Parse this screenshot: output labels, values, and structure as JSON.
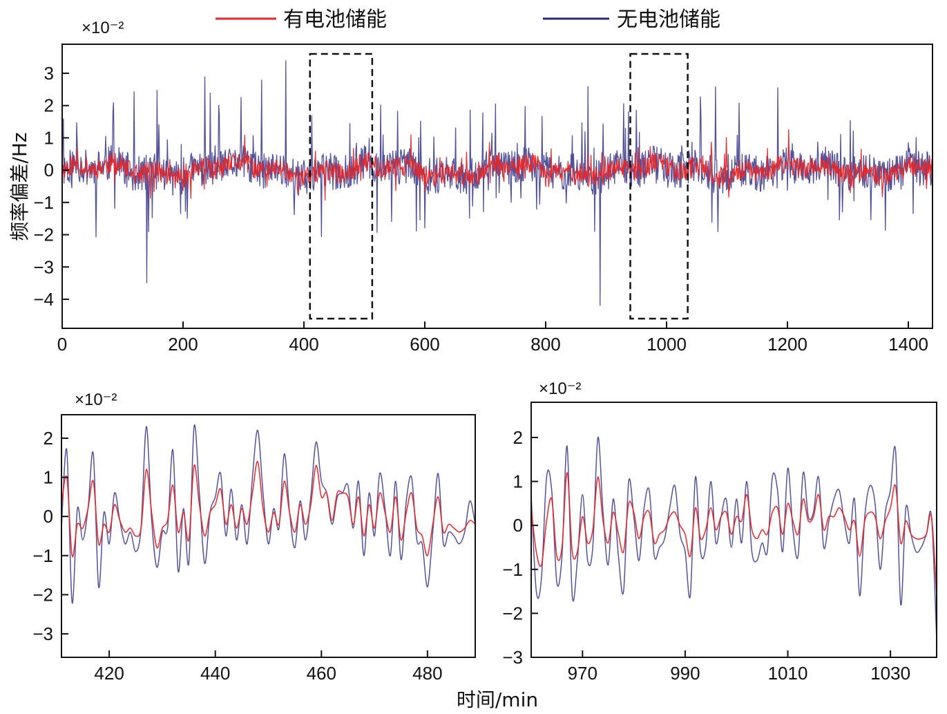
{
  "legend": {
    "with_battery": "有电池储能",
    "without_battery": "无电池储能"
  },
  "colors": {
    "with_battery": "#e5262a",
    "without_battery": "#27277f",
    "box": "#111111"
  },
  "chart_data": [
    {
      "id": "main",
      "type": "line",
      "title": "",
      "xlabel": "",
      "ylabel": "频率偏差/Hz",
      "y_scale_label": "×10⁻²",
      "xlim": [
        0,
        1440
      ],
      "ylim": [
        -4.9,
        3.9
      ],
      "x_ticks": [
        0,
        200,
        400,
        600,
        800,
        1000,
        1200,
        1400
      ],
      "y_ticks": [
        3,
        2,
        1,
        0,
        -1,
        -2,
        -3,
        -4
      ],
      "zoom_boxes": [
        {
          "x_from": 410,
          "x_to": 513,
          "y_from": -4.6,
          "y_to": 3.6
        },
        {
          "x_from": 940,
          "x_to": 1035,
          "y_from": -4.6,
          "y_to": 3.6
        }
      ],
      "series": [
        {
          "name": "有电池储能",
          "generator": {
            "seed": 11,
            "n": 1440,
            "amp": 0.55,
            "spike_prob": 0.06,
            "spike_amp": 0.9
          }
        },
        {
          "name": "无电池储能",
          "generator": {
            "seed": 11,
            "n": 1440,
            "amp": 0.95,
            "spike_prob": 0.09,
            "spike_amp": 2.2
          }
        }
      ],
      "notable_extremes": {
        "max": 3.4,
        "min": -4.2
      }
    },
    {
      "id": "zoom1",
      "type": "line",
      "title": "",
      "xlabel": "",
      "ylabel": "",
      "y_scale_label": "×10⁻²",
      "xlim": [
        411,
        489
      ],
      "ylim": [
        -3.6,
        2.6
      ],
      "x_ticks": [
        420,
        440,
        460,
        480
      ],
      "y_ticks": [
        2,
        1,
        0,
        -1,
        -2,
        -3
      ],
      "series": [
        {
          "name": "有电池储能",
          "x": [
            411,
            412,
            413,
            414,
            415,
            416,
            417,
            418,
            419,
            420,
            421,
            422,
            423,
            424,
            425,
            426,
            427,
            428,
            429,
            430,
            431,
            432,
            433,
            434,
            435,
            436,
            437,
            438,
            439,
            440,
            441,
            442,
            443,
            444,
            445,
            446,
            447,
            448,
            449,
            450,
            451,
            452,
            453,
            454,
            455,
            456,
            457,
            458,
            459,
            460,
            461,
            462,
            463,
            464,
            465,
            466,
            467,
            468,
            469,
            470,
            471,
            472,
            473,
            474,
            475,
            476,
            477,
            478,
            479,
            480,
            481,
            482,
            483,
            484,
            485,
            486,
            487,
            488,
            489
          ],
          "y": [
            0.3,
            1.0,
            -1.0,
            -0.2,
            -0.3,
            0.2,
            0.9,
            -0.7,
            -0.2,
            -0.4,
            0.3,
            -0.1,
            -0.4,
            -0.3,
            -0.5,
            -0.3,
            1.2,
            0.1,
            -0.8,
            -0.3,
            -0.1,
            0.8,
            -0.4,
            0.1,
            -0.6,
            1.3,
            0.3,
            -0.5,
            0.1,
            0.3,
            0.7,
            -0.2,
            0.3,
            -0.3,
            0.2,
            -0.2,
            0.6,
            1.4,
            0.2,
            -0.4,
            0.1,
            -0.2,
            0.9,
            0.1,
            -0.4,
            0.3,
            -0.2,
            0.3,
            1.3,
            0.5,
            0.6,
            -0.1,
            0.6,
            0.6,
            0.5,
            -0.2,
            0.5,
            -0.5,
            0.3,
            -0.3,
            0.6,
            0.1,
            -0.4,
            0.5,
            -0.6,
            0.1,
            0.6,
            -0.3,
            -0.5,
            -1.0,
            -0.2,
            0.5,
            -0.4,
            -0.2,
            -0.3,
            -0.4,
            -0.3,
            -0.1,
            -0.2
          ]
        },
        {
          "name": "无电池储能",
          "x": [
            411,
            412,
            413,
            414,
            415,
            416,
            417,
            418,
            419,
            420,
            421,
            422,
            423,
            424,
            425,
            426,
            427,
            428,
            429,
            430,
            431,
            432,
            433,
            434,
            435,
            436,
            437,
            438,
            439,
            440,
            441,
            442,
            443,
            444,
            445,
            446,
            447,
            448,
            449,
            450,
            451,
            452,
            453,
            454,
            455,
            456,
            457,
            458,
            459,
            460,
            461,
            462,
            463,
            464,
            465,
            466,
            467,
            468,
            469,
            470,
            471,
            472,
            473,
            474,
            475,
            476,
            477,
            478,
            479,
            480,
            481,
            482,
            483,
            484,
            485,
            486,
            487,
            488,
            489
          ],
          "y": [
            -0.3,
            1.7,
            -2.2,
            0.2,
            -0.6,
            0.2,
            1.6,
            -1.8,
            0.1,
            -0.7,
            0.6,
            -0.1,
            -0.7,
            -0.4,
            -0.9,
            -0.3,
            2.3,
            -0.1,
            -1.3,
            -0.4,
            -0.3,
            1.7,
            -1.4,
            0.2,
            -1.2,
            2.3,
            0.6,
            -1.2,
            0.1,
            0.5,
            1.1,
            -0.5,
            0.7,
            -0.6,
            0.3,
            -0.7,
            1.0,
            2.2,
            0.6,
            -0.7,
            0.2,
            -0.3,
            1.6,
            0.1,
            -0.8,
            0.4,
            -0.6,
            0.5,
            1.9,
            0.9,
            0.6,
            -0.2,
            0.5,
            0.6,
            0.8,
            -0.3,
            0.9,
            -1.0,
            0.6,
            -0.5,
            1.1,
            0.2,
            -1.0,
            0.9,
            -1.1,
            0.4,
            1.0,
            -0.6,
            -0.7,
            -1.8,
            -0.4,
            1.1,
            -0.7,
            -0.4,
            -0.5,
            -0.7,
            -0.4,
            0.4,
            -0.2
          ]
        }
      ]
    },
    {
      "id": "zoom2",
      "type": "line",
      "title": "",
      "xlabel": "",
      "ylabel": "",
      "y_scale_label": "×10⁻²",
      "xlim": [
        960,
        1039
      ],
      "ylim": [
        -3.0,
        2.8
      ],
      "x_ticks": [
        970,
        990,
        1010,
        1030
      ],
      "y_ticks": [
        2,
        1,
        0,
        -1,
        -2,
        -3
      ],
      "series": [
        {
          "name": "有电池储能",
          "x": [
            960,
            961,
            962,
            963,
            964,
            965,
            966,
            967,
            968,
            969,
            970,
            971,
            972,
            973,
            974,
            975,
            976,
            977,
            978,
            979,
            980,
            981,
            982,
            983,
            984,
            985,
            986,
            987,
            988,
            989,
            990,
            991,
            992,
            993,
            994,
            995,
            996,
            997,
            998,
            999,
            1000,
            1001,
            1002,
            1003,
            1004,
            1005,
            1006,
            1007,
            1008,
            1009,
            1010,
            1011,
            1012,
            1013,
            1014,
            1015,
            1016,
            1017,
            1018,
            1019,
            1020,
            1021,
            1022,
            1023,
            1024,
            1025,
            1026,
            1027,
            1028,
            1029,
            1030,
            1031,
            1032,
            1033,
            1034,
            1035,
            1036,
            1037,
            1038,
            1039
          ],
          "y": [
            0.4,
            -0.6,
            -0.9,
            0.1,
            0.6,
            -0.7,
            -0.5,
            1.2,
            -0.6,
            -0.6,
            0.2,
            -0.4,
            -0.1,
            1.1,
            0.1,
            -0.4,
            0.3,
            -0.2,
            -0.6,
            0.5,
            0.3,
            -0.3,
            0.2,
            0.3,
            -0.4,
            -0.2,
            -0.1,
            0.2,
            0.3,
            0.0,
            -0.2,
            -0.7,
            0.4,
            -0.3,
            -0.1,
            0.4,
            -0.1,
            0.2,
            0.3,
            -0.2,
            0.2,
            0.1,
            0.7,
            -0.1,
            -0.3,
            -0.1,
            -0.2,
            0.3,
            0.4,
            -0.2,
            0.5,
            0.1,
            -0.2,
            0.6,
            0.1,
            0.2,
            0.7,
            -0.1,
            0.2,
            0.2,
            0.4,
            0.2,
            -0.1,
            0.1,
            -0.7,
            0.1,
            0.3,
            0.2,
            -0.3,
            0.1,
            0.4,
            0.9,
            -0.4,
            0.1,
            -0.2,
            -0.3,
            -0.3,
            -0.2,
            0.2,
            -1.6
          ]
        },
        {
          "name": "无电池储能",
          "x": [
            960,
            961,
            962,
            963,
            964,
            965,
            966,
            967,
            968,
            969,
            970,
            971,
            972,
            973,
            974,
            975,
            976,
            977,
            978,
            979,
            980,
            981,
            982,
            983,
            984,
            985,
            986,
            987,
            988,
            989,
            990,
            991,
            992,
            993,
            994,
            995,
            996,
            997,
            998,
            999,
            1000,
            1001,
            1002,
            1003,
            1004,
            1005,
            1006,
            1007,
            1008,
            1009,
            1010,
            1011,
            1012,
            1013,
            1014,
            1015,
            1016,
            1017,
            1018,
            1019,
            1020,
            1021,
            1022,
            1023,
            1024,
            1025,
            1026,
            1027,
            1028,
            1029,
            1030,
            1031,
            1032,
            1033,
            1034,
            1035,
            1036,
            1037,
            1038,
            1039
          ],
          "y": [
            0.7,
            -1.5,
            -1.2,
            1.1,
            0.8,
            -1.3,
            -0.7,
            1.8,
            -1.6,
            -0.8,
            0.7,
            -0.8,
            -0.5,
            2.0,
            0.3,
            -0.9,
            0.6,
            -0.7,
            -1.5,
            1.0,
            0.2,
            -0.8,
            0.4,
            0.8,
            -0.7,
            -0.5,
            -0.3,
            0.4,
            0.9,
            -0.2,
            -0.6,
            -1.6,
            1.1,
            -0.6,
            -0.5,
            1.0,
            -0.4,
            0.2,
            0.6,
            -0.5,
            0.6,
            -0.4,
            1.0,
            -0.6,
            -0.8,
            -0.4,
            -0.6,
            1.1,
            0.8,
            -0.6,
            1.3,
            -0.1,
            -0.7,
            1.2,
            0.2,
            0.3,
            1.1,
            -0.5,
            0.1,
            0.6,
            0.8,
            0.1,
            -0.4,
            0.6,
            -1.6,
            0.2,
            0.9,
            0.5,
            -1.0,
            0.3,
            0.8,
            1.7,
            -1.8,
            0.4,
            -0.2,
            -0.6,
            -0.5,
            -0.2,
            0.2,
            -2.6
          ]
        }
      ]
    }
  ],
  "x_axis_label": "时间/min"
}
